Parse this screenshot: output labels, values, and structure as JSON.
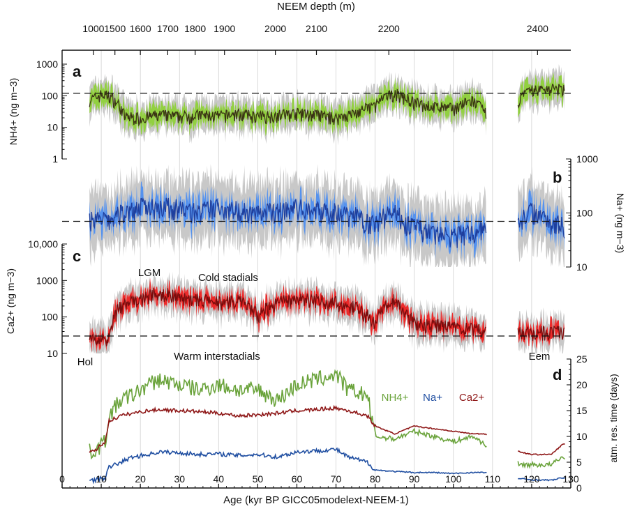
{
  "figure": {
    "top_axis_title": "NEEM depth (m)",
    "top_ticks": [
      "1000",
      "1500",
      "1600",
      "1700",
      "1800",
      "1900",
      "2000",
      "2100",
      "2200",
      "2400"
    ],
    "bottom_axis_title": "Age (kyr BP GICC05modelext-NEEM-1)",
    "panel_letters": [
      "a",
      "b",
      "c",
      "d"
    ],
    "annotations": {
      "lgm": "LGM",
      "cold": "Cold stadials",
      "warm": "Warm interstadials",
      "hol": "Hol",
      "eem": "Eem"
    },
    "colors": {
      "nh4_fill": "#8fd13a",
      "nh4_line": "#3a3414",
      "na_fill": "#4f8ff0",
      "na_line": "#1e3f9e",
      "ca_fill": "#ee2222",
      "ca_line": "#7a0c0c",
      "raw_gray": "#c8c8c8",
      "d_nh4": "#6aa33b",
      "d_na": "#1f4ea1",
      "d_ca": "#8e1717"
    }
  },
  "chart_data": [
    {
      "panel": "a",
      "type": "line",
      "ylabel": "NH4+ (ng m−3)",
      "yscale": "log",
      "ylim": [
        1,
        1000
      ],
      "y_ticks": [
        "1000",
        "100",
        "10",
        "1"
      ],
      "reference_line": 120,
      "x": [
        8,
        10,
        12,
        14,
        16,
        20,
        25,
        30,
        35,
        40,
        45,
        50,
        55,
        60,
        65,
        70,
        75,
        80,
        85,
        87,
        90,
        95,
        100,
        105,
        108,
        117,
        120,
        125,
        128
      ],
      "series": [
        {
          "values": [
            80,
            110,
            100,
            60,
            22,
            20,
            25,
            22,
            25,
            23,
            27,
            22,
            25,
            28,
            25,
            20,
            28,
            50,
            120,
            95,
            60,
            45,
            40,
            70,
            28,
            80,
            150,
            170,
            160
          ]
        }
      ]
    },
    {
      "panel": "b",
      "type": "line",
      "ylabel": "Na+ (ng m−3)",
      "yscale": "log",
      "ylim": [
        10,
        1000
      ],
      "y_ticks": [
        "1000",
        "100",
        "10"
      ],
      "reference_line": 70,
      "x": [
        8,
        10,
        12,
        15,
        20,
        25,
        30,
        35,
        40,
        45,
        50,
        55,
        60,
        65,
        70,
        75,
        80,
        85,
        87,
        90,
        95,
        100,
        105,
        108,
        117,
        120,
        125,
        128
      ],
      "series": [
        {
          "values": [
            80,
            75,
            70,
            100,
            130,
            140,
            120,
            105,
            130,
            115,
            100,
            110,
            125,
            115,
            105,
            90,
            60,
            120,
            70,
            55,
            42,
            38,
            45,
            50,
            75,
            110,
            70,
            60
          ]
        }
      ]
    },
    {
      "panel": "c",
      "type": "line",
      "ylabel": "Ca2+ (ng m−3)",
      "yscale": "log",
      "ylim": [
        10,
        10000
      ],
      "y_ticks": [
        "10,000",
        "1000",
        "100",
        "10"
      ],
      "reference_line": 30,
      "x": [
        8,
        10,
        12,
        15,
        20,
        25,
        30,
        35,
        40,
        45,
        50,
        55,
        60,
        65,
        70,
        75,
        80,
        85,
        87,
        90,
        95,
        100,
        105,
        108,
        117,
        120,
        125,
        128
      ],
      "series": [
        {
          "values": [
            25,
            25,
            30,
            200,
            300,
            500,
            350,
            300,
            250,
            280,
            110,
            250,
            320,
            300,
            250,
            180,
            70,
            300,
            150,
            70,
            60,
            55,
            45,
            45,
            40,
            38,
            42,
            40
          ]
        }
      ]
    },
    {
      "panel": "d",
      "type": "line",
      "ylabel": "atm. res. time (days)",
      "ylim": [
        0,
        25
      ],
      "y_ticks": [
        "0",
        "5",
        "10",
        "15",
        "20",
        "25"
      ],
      "xlim": [
        0,
        130
      ],
      "x_ticks": [
        "0",
        "10",
        "20",
        "30",
        "40",
        "50",
        "60",
        "70",
        "80",
        "90",
        "100",
        "110",
        "120",
        "130"
      ],
      "x": [
        8,
        11,
        12,
        15,
        18,
        22,
        25,
        30,
        35,
        40,
        45,
        50,
        55,
        60,
        65,
        70,
        73,
        78,
        80,
        85,
        90,
        95,
        100,
        105,
        108,
        117,
        120,
        125,
        128
      ],
      "series": [
        {
          "name": "NH4+",
          "values": [
            7,
            9,
            14,
            17,
            18,
            20,
            21,
            20,
            19,
            20,
            19,
            19,
            17,
            20,
            21,
            22,
            19,
            18,
            10,
            9.5,
            11,
            10,
            9,
            10,
            8.5,
            4.5,
            4.5,
            4.5,
            6
          ]
        },
        {
          "name": "Na+",
          "values": [
            1.5,
            2,
            4,
            5,
            6,
            6.5,
            7,
            6.8,
            6.5,
            6.6,
            6.3,
            6.5,
            6,
            7,
            7.2,
            7.5,
            6,
            5,
            3.5,
            3.2,
            3,
            3,
            2.8,
            3,
            3,
            1.8,
            1.6,
            1.5,
            2
          ]
        },
        {
          "name": "Ca2+",
          "values": [
            7,
            9,
            13,
            14,
            14.5,
            15,
            15.2,
            15,
            14.8,
            14.5,
            14,
            14.2,
            14.5,
            15,
            15.2,
            15.5,
            15,
            14,
            12,
            10.5,
            12,
            11.5,
            11,
            10.5,
            10.5,
            7,
            6.5,
            6.5,
            8.5
          ]
        }
      ]
    }
  ]
}
